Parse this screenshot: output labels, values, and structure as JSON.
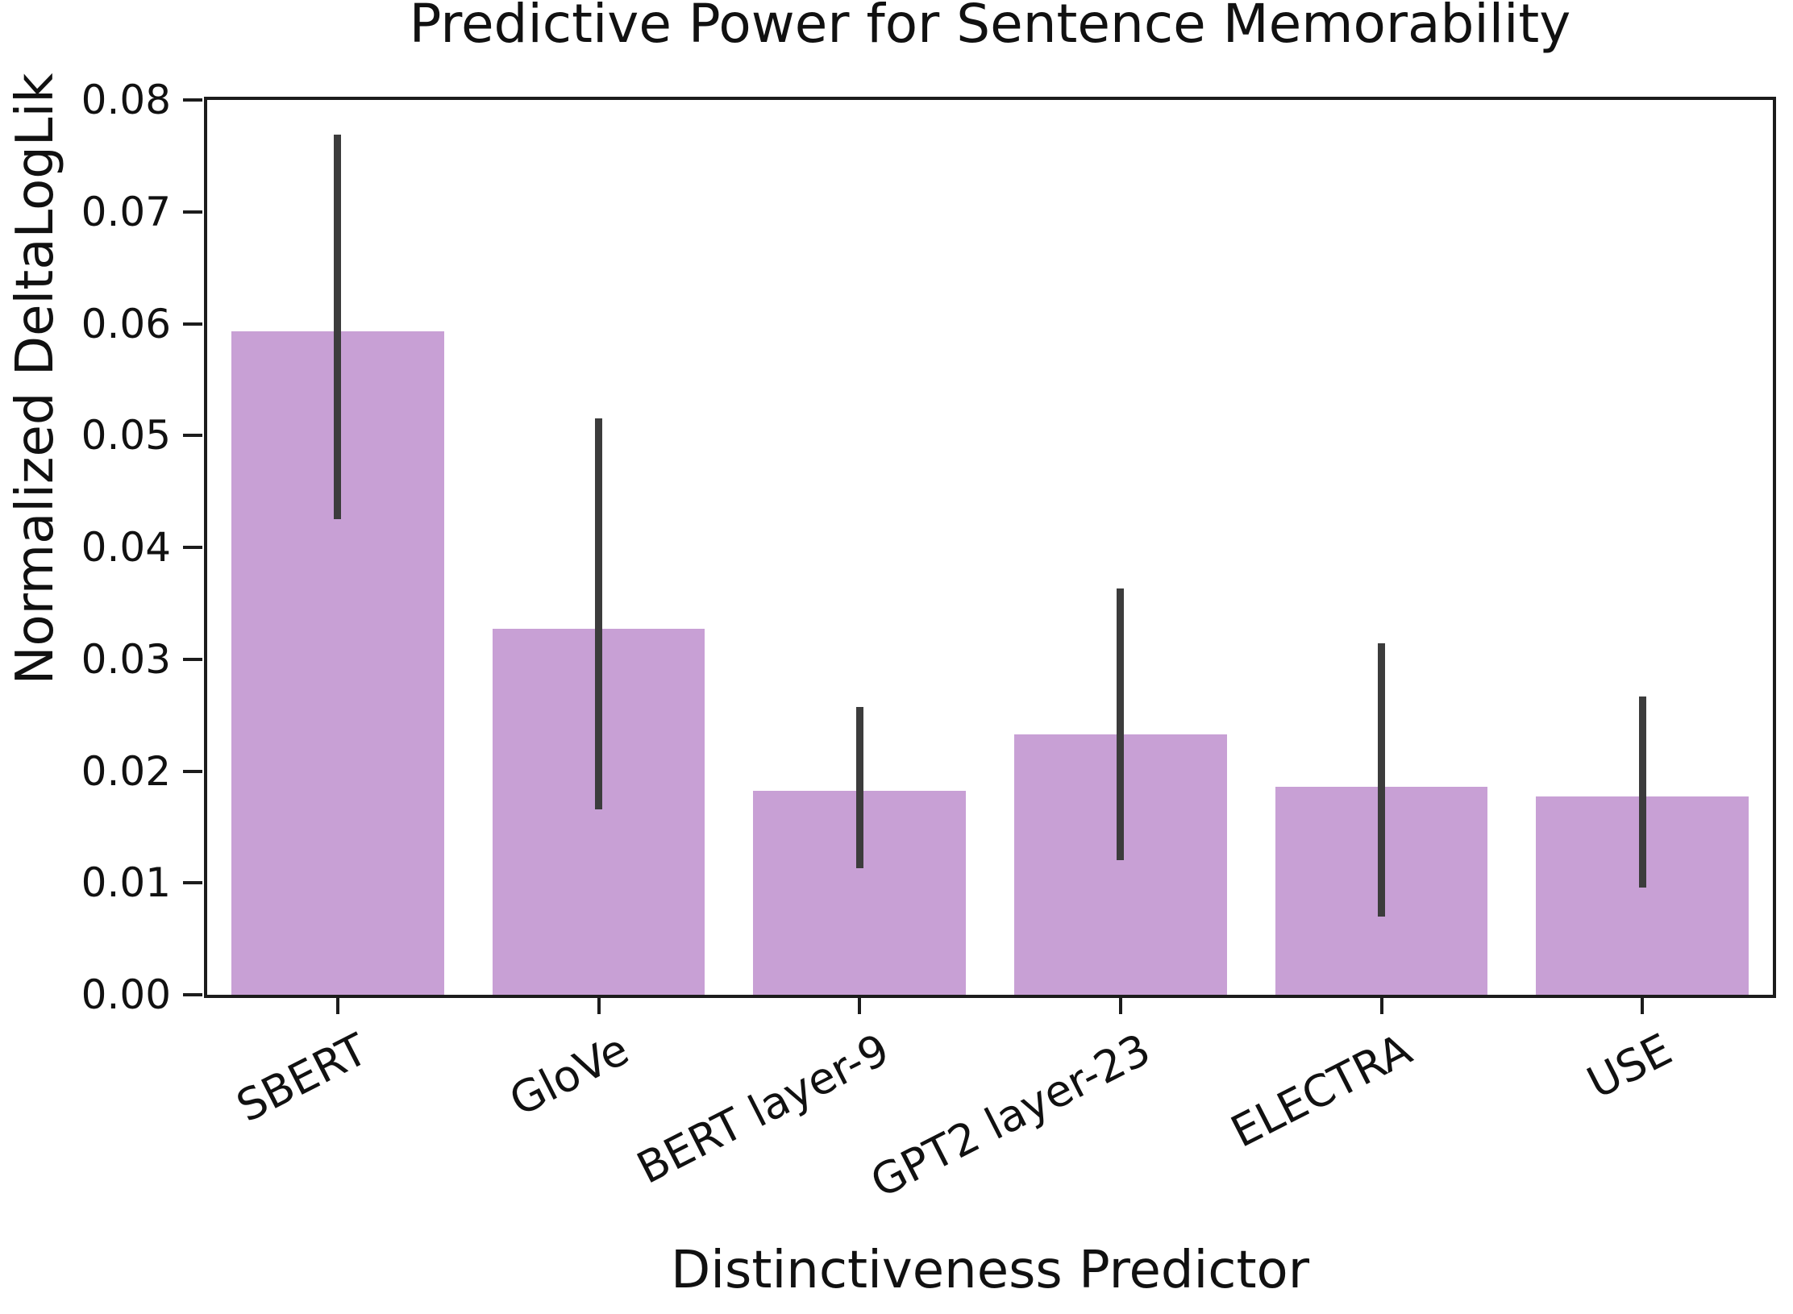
{
  "chart_data": {
    "type": "bar",
    "title": "Predictive Power for Sentence Memorability",
    "xlabel": "Distinctiveness Predictor",
    "ylabel": "Normalized DeltaLogLik",
    "categories": [
      "SBERT",
      "GloVe",
      "BERT layer-9",
      "GPT2 layer-23",
      "ELECTRA",
      "USE"
    ],
    "values": [
      0.0593,
      0.0327,
      0.0182,
      0.0233,
      0.0186,
      0.0177
    ],
    "error_bars": {
      "low": [
        0.0425,
        0.0166,
        0.0113,
        0.012,
        0.007,
        0.0096
      ],
      "high": [
        0.0769,
        0.0515,
        0.0257,
        0.0363,
        0.0314,
        0.0267
      ]
    },
    "ylim": [
      0.0,
      0.08
    ],
    "ytick_labels": [
      "0.00",
      "0.01",
      "0.02",
      "0.03",
      "0.04",
      "0.05",
      "0.06",
      "0.07",
      "0.08"
    ],
    "ytick_values": [
      0.0,
      0.01,
      0.02,
      0.03,
      0.04,
      0.05,
      0.06,
      0.07,
      0.08
    ],
    "grid": false,
    "legend": "none",
    "bar_color": "#c8a0d5",
    "error_color": "#3c3c3c",
    "axis_color": "#1c1c1c",
    "bar_width_fraction": 0.815,
    "xtick_label_rotation_deg": 27
  }
}
